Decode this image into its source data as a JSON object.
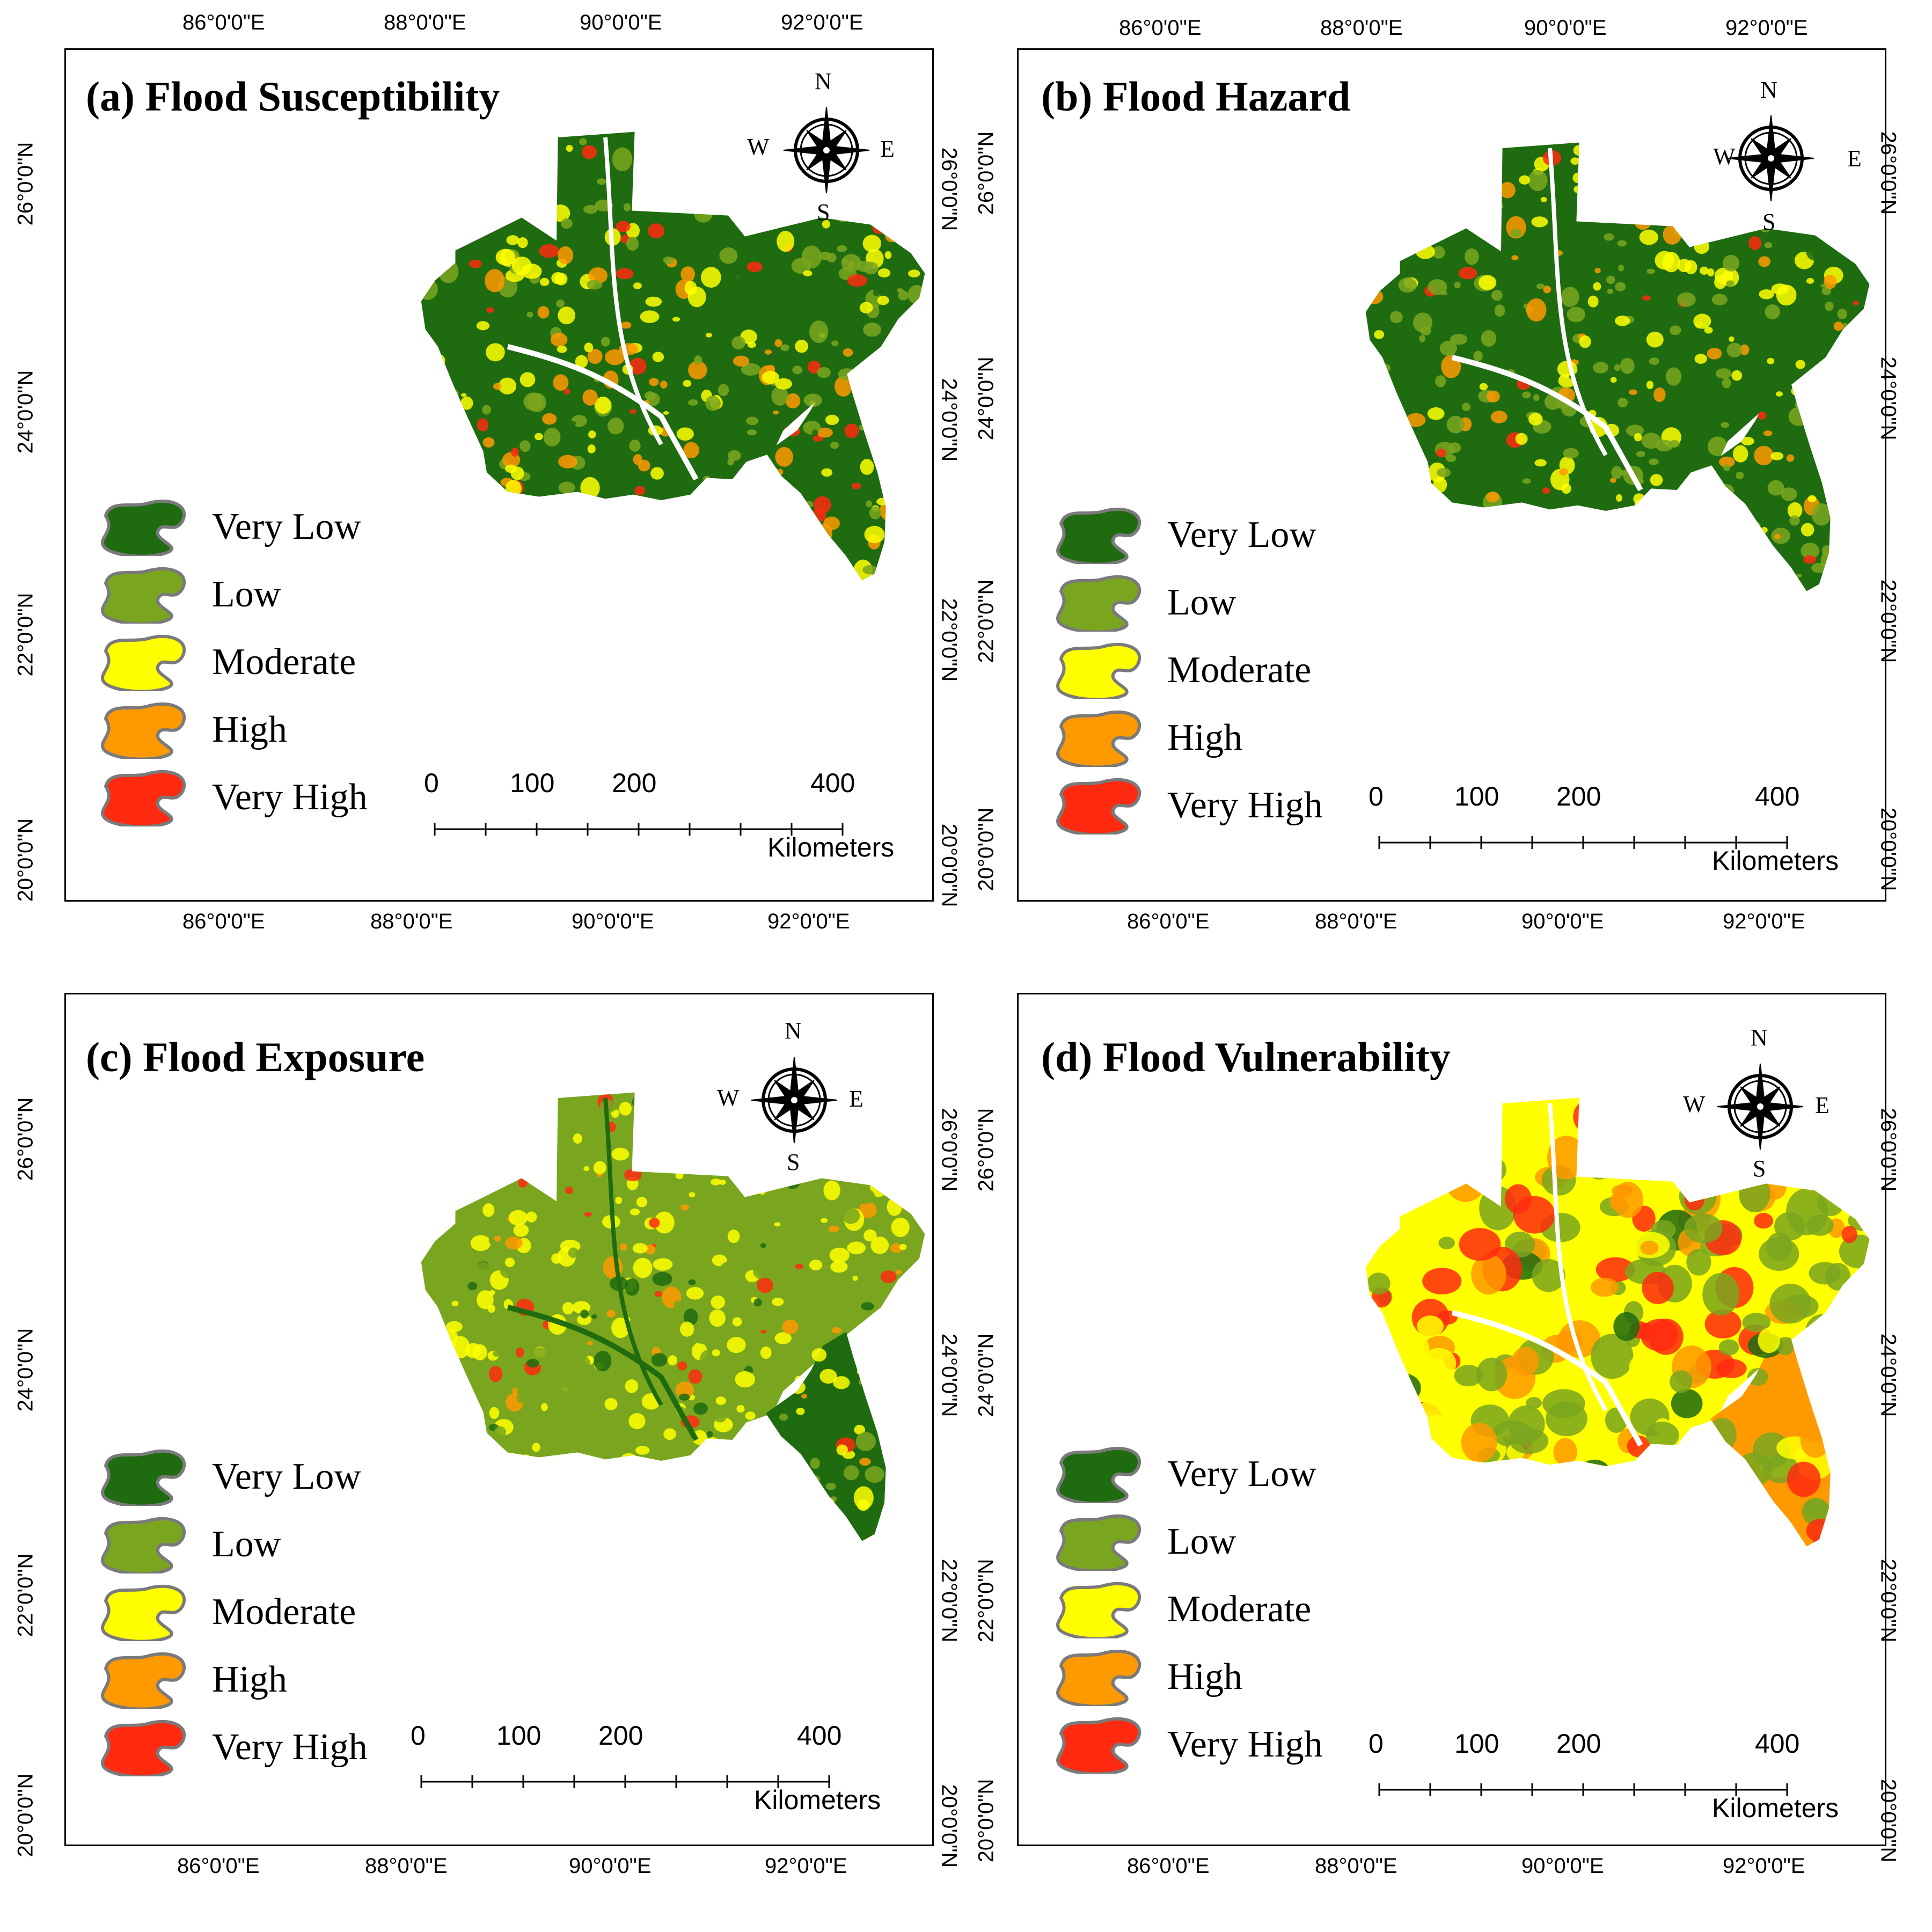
{
  "panels": [
    {
      "id": "a",
      "title": "(a) Flood Susceptibility",
      "scheme": "susceptibility"
    },
    {
      "id": "b",
      "title": "(b) Flood Hazard",
      "scheme": "hazard"
    },
    {
      "id": "c",
      "title": "(c) Flood Exposure",
      "scheme": "exposure"
    },
    {
      "id": "d",
      "title": "(d) Flood Vulnerability",
      "scheme": "vulnerability"
    }
  ],
  "longitude_ticks": [
    "86°0'0\"E",
    "88°0'0\"E",
    "90°0'0\"E",
    "92°0'0\"E"
  ],
  "latitude_ticks": [
    "20°0'0\"N",
    "22°0'0\"N",
    "24°0'0\"N",
    "26°0'0\"N"
  ],
  "legend": [
    {
      "label": "Very Low",
      "color": "#1f6b10"
    },
    {
      "label": "Low",
      "color": "#7aa61f"
    },
    {
      "label": "Moderate",
      "color": "#ffff00"
    },
    {
      "label": "High",
      "color": "#ff9900"
    },
    {
      "label": "Very High",
      "color": "#ff2a10"
    }
  ],
  "scalebar": {
    "labels": [
      "0",
      "100",
      "200",
      "400"
    ],
    "unit": "Kilometers"
  },
  "compass": {
    "n": "N",
    "s": "S",
    "e": "E",
    "w": "W"
  }
}
